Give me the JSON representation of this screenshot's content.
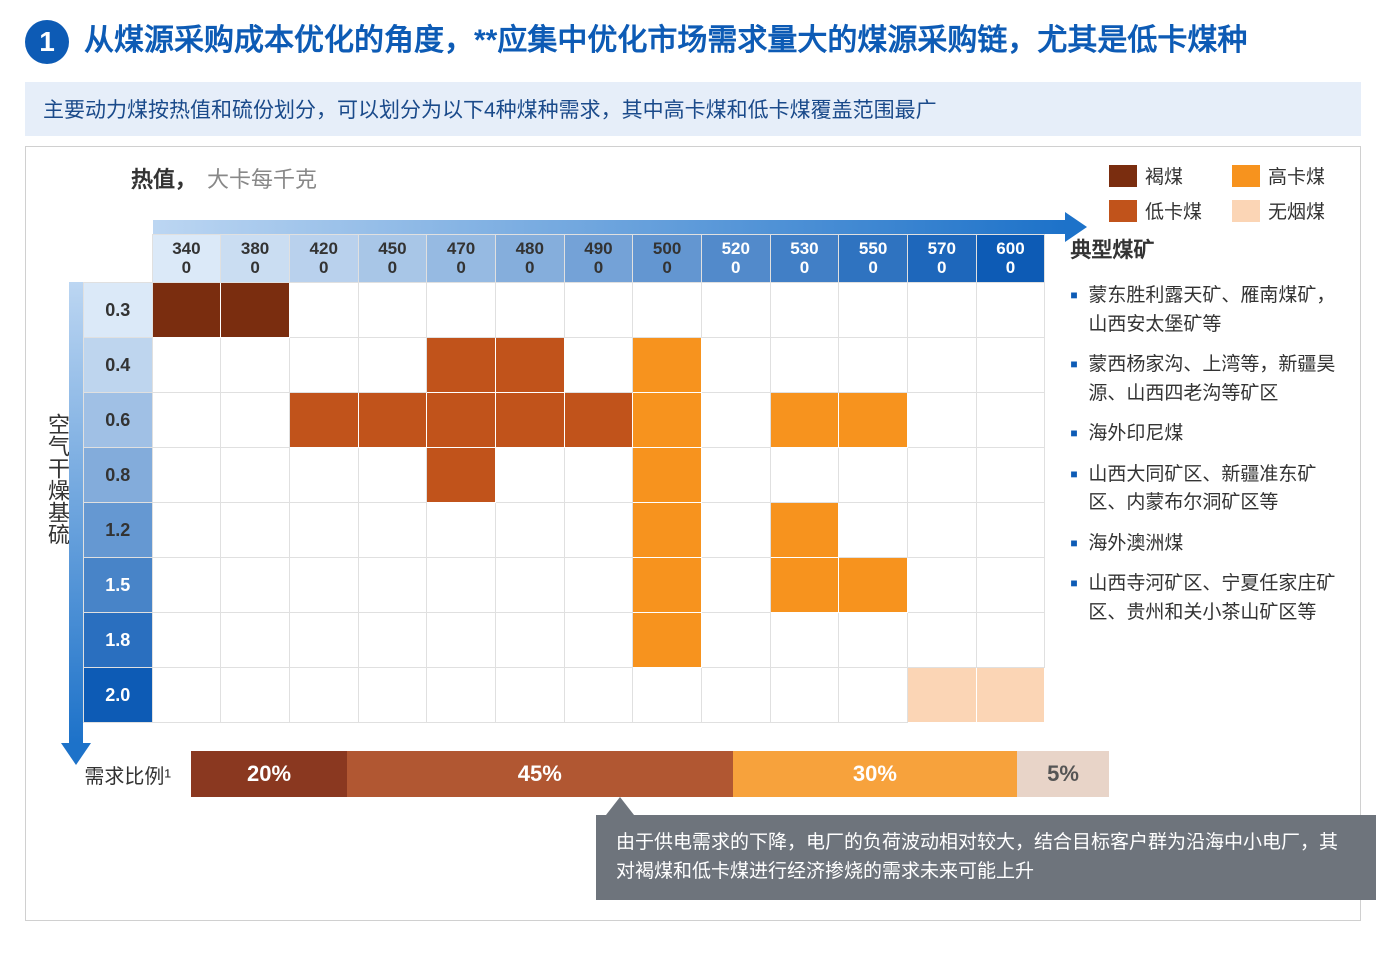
{
  "header": {
    "number": "1",
    "title": "从煤源采购成本优化的角度，**应集中优化市场需求量大的煤源采购链，尤其是低卡煤种"
  },
  "subtitle": "主要动力煤按热值和硫份划分，可以划分为以下4种煤种需求，其中高卡煤和低卡煤覆盖范围最广",
  "axes": {
    "x_label_name": "热值，",
    "x_label_unit": "大卡每千克",
    "y_label": "空气干燥基硫"
  },
  "legend": [
    {
      "label": "褐煤",
      "color": "#7a2d0f"
    },
    {
      "label": "高卡煤",
      "color": "#f7931e"
    },
    {
      "label": "低卡煤",
      "color": "#c1531b"
    },
    {
      "label": "无烟煤",
      "color": "#fbd5b5"
    }
  ],
  "heatmap": {
    "col_headers": [
      "3400",
      "3800",
      "4200",
      "4500",
      "4700",
      "4800",
      "4900",
      "5000",
      "5200",
      "5300",
      "5500",
      "5700",
      "6000"
    ],
    "col_header_gradient_start": "#dbe9f8",
    "col_header_gradient_end": "#0d5bb5",
    "row_headers": [
      "0.3",
      "0.4",
      "0.6",
      "0.8",
      "1.2",
      "1.5",
      "1.8",
      "2.0"
    ],
    "row_header_gradient_start": "#dbe9f8",
    "row_header_gradient_end": "#0d5bb5",
    "cell_colors": {
      "lignite": "#7a2d0f",
      "low_cal": "#c1531b",
      "high_cal": "#f7931e",
      "anthracite": "#fbd5b5"
    },
    "cells": [
      [
        "lignite",
        "lignite",
        "",
        "",
        "",
        "",
        "",
        "",
        "",
        "",
        "",
        "",
        ""
      ],
      [
        "",
        "",
        "",
        "",
        "low_cal",
        "low_cal",
        "",
        "high_cal",
        "",
        "",
        "",
        "",
        ""
      ],
      [
        "",
        "",
        "low_cal",
        "low_cal",
        "low_cal",
        "low_cal",
        "low_cal",
        "high_cal",
        "",
        "high_cal",
        "high_cal",
        "",
        ""
      ],
      [
        "",
        "",
        "",
        "",
        "low_cal",
        "",
        "",
        "high_cal",
        "",
        "",
        "",
        "",
        ""
      ],
      [
        "",
        "",
        "",
        "",
        "",
        "",
        "",
        "high_cal",
        "",
        "high_cal",
        "",
        "",
        ""
      ],
      [
        "",
        "",
        "",
        "",
        "",
        "",
        "",
        "high_cal",
        "",
        "high_cal",
        "high_cal",
        "",
        ""
      ],
      [
        "",
        "",
        "",
        "",
        "",
        "",
        "",
        "high_cal",
        "",
        "",
        "",
        "",
        ""
      ],
      [
        "",
        "",
        "",
        "",
        "",
        "",
        "",
        "",
        "",
        "",
        "",
        "anthracite",
        "anthracite"
      ]
    ]
  },
  "typical_mines": {
    "title": "典型煤矿",
    "items": [
      "蒙东胜利露天矿、雁南煤矿，山西安太堡矿等",
      "蒙西杨家沟、上湾等，新疆昊源、山西四老沟等矿区",
      "海外印尼煤",
      "山西大同矿区、新疆准东矿区、内蒙布尔洞矿区等",
      "海外澳洲煤",
      "山西寺河矿区、宁夏任家庄矿区、贵州和关小茶山矿区等"
    ]
  },
  "demand": {
    "label": "需求比例¹",
    "segments": [
      {
        "label": "20%",
        "width_pct": 17,
        "color": "#8a3820"
      },
      {
        "label": "45%",
        "width_pct": 42,
        "color": "#b15732"
      },
      {
        "label": "30%",
        "width_pct": 31,
        "color": "#f7a23c"
      },
      {
        "label": "5%",
        "width_pct": 10,
        "color": "#e8d4c8",
        "text_color": "#555"
      }
    ]
  },
  "callout": "由于供电需求的下降，电厂的负荷波动相对较大，结合目标客户群为沿海中小电厂，其对褐煤和低卡煤进行经济掺烧的需求未来可能上升"
}
